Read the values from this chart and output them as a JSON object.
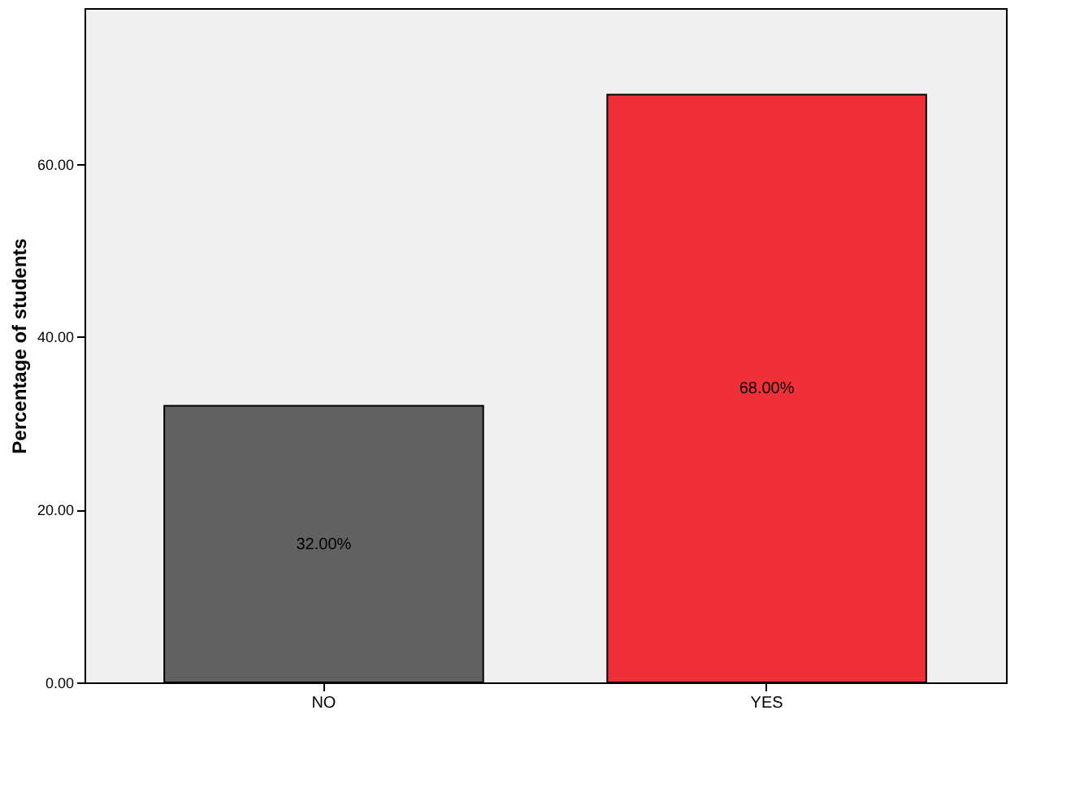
{
  "chart_data": {
    "type": "bar",
    "ylabel": "Percentage of students",
    "categories": [
      "NO",
      "YES"
    ],
    "values": [
      32,
      68
    ],
    "colors": [
      "#616161",
      "#ef3039"
    ],
    "value_labels": [
      "32.00%",
      "68.00%"
    ],
    "ylim": [
      0,
      78
    ],
    "yticks": [
      {
        "value": 0,
        "label": "0.00"
      },
      {
        "value": 20,
        "label": "20.00"
      },
      {
        "value": 40,
        "label": "40.00"
      },
      {
        "value": 60,
        "label": "60.00"
      }
    ],
    "grid": false
  }
}
